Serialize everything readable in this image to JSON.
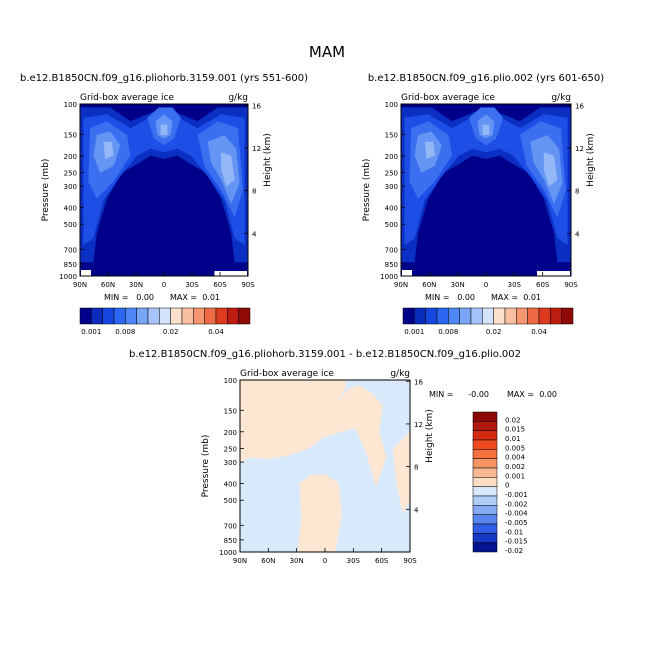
{
  "page_title": "MAM",
  "chart_data": [
    {
      "type": "heatmap",
      "id": "left",
      "title": "b.e12.B1850CN.f09_g16.pliohorb.3159.001 (yrs 551-600)",
      "subtitle_left": "Grid-box average ice",
      "subtitle_right": "g/kg",
      "ylabel": "Pressure (mb)",
      "ylabel_right": "Height (km)",
      "x_ticks": [
        "90N",
        "60N",
        "30N",
        "0",
        "30S",
        "60S",
        "90S"
      ],
      "y_ticks": [
        "100",
        "150",
        "200",
        "250",
        "300",
        "400",
        "500",
        "700",
        "850",
        "1000"
      ],
      "y_ticks_right": [
        "16",
        "12",
        "8",
        "4"
      ],
      "stats": {
        "min_label": "MIN =",
        "min": "0.00",
        "max_label": "MAX =",
        "max": "0.01"
      },
      "colorbar_labels": [
        "0.001",
        "0.008",
        "0.02",
        "0.04"
      ],
      "colorbar_colors": [
        "#00008a",
        "#0a2cbd",
        "#1548e0",
        "#2a66f0",
        "#4f86f5",
        "#7aa6f7",
        "#a6c4f9",
        "#d3e4fb",
        "#fbe1cc",
        "#f8c0a0",
        "#f59871",
        "#ee6a45",
        "#dd3a1f",
        "#bd1c10",
        "#8f0a06"
      ],
      "colors": [
        "#00008b",
        "#0b2fc2",
        "#1d4fe6",
        "#3a6ff0",
        "#6494f4",
        "#94b7f7"
      ]
    },
    {
      "type": "heatmap",
      "id": "right",
      "title": "b.e12.B1850CN.f09_g16.plio.002 (yrs 601-650)",
      "subtitle_left": "Grid-box average ice",
      "subtitle_right": "g/kg",
      "ylabel": "Pressure (mb)",
      "ylabel_right": "Height (km)",
      "x_ticks": [
        "90N",
        "60N",
        "30N",
        "0",
        "30S",
        "60S",
        "90S"
      ],
      "y_ticks": [
        "100",
        "150",
        "200",
        "250",
        "300",
        "400",
        "500",
        "700",
        "850",
        "1000"
      ],
      "y_ticks_right": [
        "16",
        "12",
        "8",
        "4"
      ],
      "stats": {
        "min_label": "MIN =",
        "min": "0.00",
        "max_label": "MAX =",
        "max": "0.01"
      },
      "colorbar_labels": [
        "0.001",
        "0.008",
        "0.02",
        "0.04"
      ],
      "colorbar_colors": [
        "#00008a",
        "#0a2cbd",
        "#1548e0",
        "#2a66f0",
        "#4f86f5",
        "#7aa6f7",
        "#a6c4f9",
        "#d3e4fb",
        "#fbe1cc",
        "#f8c0a0",
        "#f59871",
        "#ee6a45",
        "#dd3a1f",
        "#bd1c10",
        "#8f0a06"
      ],
      "colors": [
        "#00008b",
        "#0b2fc2",
        "#1d4fe6",
        "#3a6ff0",
        "#6494f4",
        "#94b7f7"
      ]
    },
    {
      "type": "heatmap",
      "id": "diff",
      "title": "b.e12.B1850CN.f09_g16.pliohorb.3159.001 - b.e12.B1850CN.f09_g16.plio.002",
      "subtitle_left": "Grid-box average ice",
      "subtitle_right": "g/kg",
      "ylabel": "Pressure (mb)",
      "ylabel_right": "Height (km)",
      "x_ticks": [
        "90N",
        "60N",
        "30N",
        "0",
        "30S",
        "60S",
        "90S"
      ],
      "y_ticks": [
        "100",
        "150",
        "200",
        "250",
        "300",
        "400",
        "500",
        "700",
        "850",
        "1000"
      ],
      "y_ticks_right": [
        "16",
        "12",
        "8",
        "4"
      ],
      "stats": {
        "min_label": "MIN =",
        "min": "-0.00",
        "max_label": "MAX =",
        "max": "0.00"
      },
      "colorbar_labels": [
        "0.02",
        "0.015",
        "0.01",
        "0.005",
        "0.004",
        "0.002",
        "0.001",
        "0",
        "-0.001",
        "-0.002",
        "-0.004",
        "-0.005",
        "-0.01",
        "-0.015",
        "-0.02"
      ],
      "colorbar_colors": [
        "#8b0a06",
        "#b01a0c",
        "#d42a12",
        "#ef4a22",
        "#f4703f",
        "#f79565",
        "#f9b891",
        "#fcdcc2",
        "#d8e8fb",
        "#b1cdf8",
        "#86abf4",
        "#5986ef",
        "#2f5ee5",
        "#1539c4",
        "#03138e"
      ],
      "colors": {
        "positive": "#fde7d2",
        "negative": "#d9e9fc"
      }
    }
  ]
}
